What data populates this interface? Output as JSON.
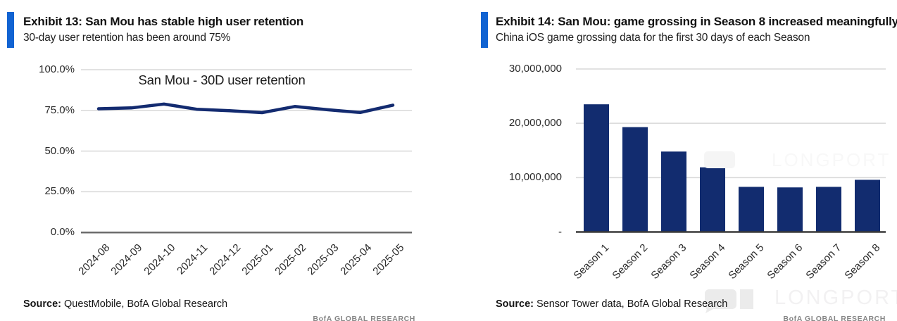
{
  "left": {
    "exhibit_title": "Exhibit 13: San Mou has stable high user retention",
    "subtitle": "30-day user retention has been around 75%",
    "source_label": "Source:",
    "source_text": "QuestMobile, BofA Global Research"
  },
  "right": {
    "exhibit_title": "Exhibit 14: San Mou: game grossing in Season 8 increased meaningfully",
    "subtitle": "China iOS game grossing data for the first 30 days of each Season",
    "source_label": "Source:",
    "source_text": "Sensor Tower data, BofA Global Research"
  },
  "footer_brand": "BofA GLOBAL RESEARCH",
  "watermark": {
    "text": "LONGPORT"
  },
  "colors": {
    "accent_blue": "#1163d2",
    "line_navy": "#132b70",
    "bar_navy": "#122c6f",
    "grid": "#d8d8d8",
    "axis_dark_left": "#6b6b6b",
    "axis_dark_right": "#3a3a3a"
  },
  "chart_data": [
    {
      "type": "line",
      "title": "San Mou - 30D user retention",
      "x": [
        "2024-08",
        "2024-09",
        "2024-10",
        "2024-11",
        "2024-12",
        "2025-01",
        "2025-02",
        "2025-03",
        "2025-04",
        "2025-05"
      ],
      "values": [
        76.0,
        76.5,
        78.9,
        75.7,
        74.8,
        73.6,
        77.4,
        75.4,
        73.7,
        78.2
      ],
      "unit": "%",
      "ylim": [
        0,
        100
      ],
      "ytick_values": [
        100,
        75,
        50,
        25,
        0
      ],
      "ytick_labels": [
        "100.0%",
        "75.0%",
        "50.0%",
        "25.0%",
        "0.0%"
      ],
      "grid": true,
      "legend": "none"
    },
    {
      "type": "bar",
      "title": "",
      "categories": [
        "Season 1",
        "Season 2",
        "Season 3",
        "Season 4",
        "Season 5",
        "Season 6",
        "Season 7",
        "Season 8"
      ],
      "values": [
        23500000,
        19300000,
        14800000,
        11900000,
        8300000,
        8200000,
        8300000,
        9600000
      ],
      "ylim": [
        0,
        30000000
      ],
      "ytick_values": [
        30000000,
        20000000,
        10000000,
        0
      ],
      "ytick_labels": [
        "30,000,000",
        "20,000,000",
        "10,000,000",
        "-"
      ],
      "grid": true,
      "legend": "none"
    }
  ]
}
